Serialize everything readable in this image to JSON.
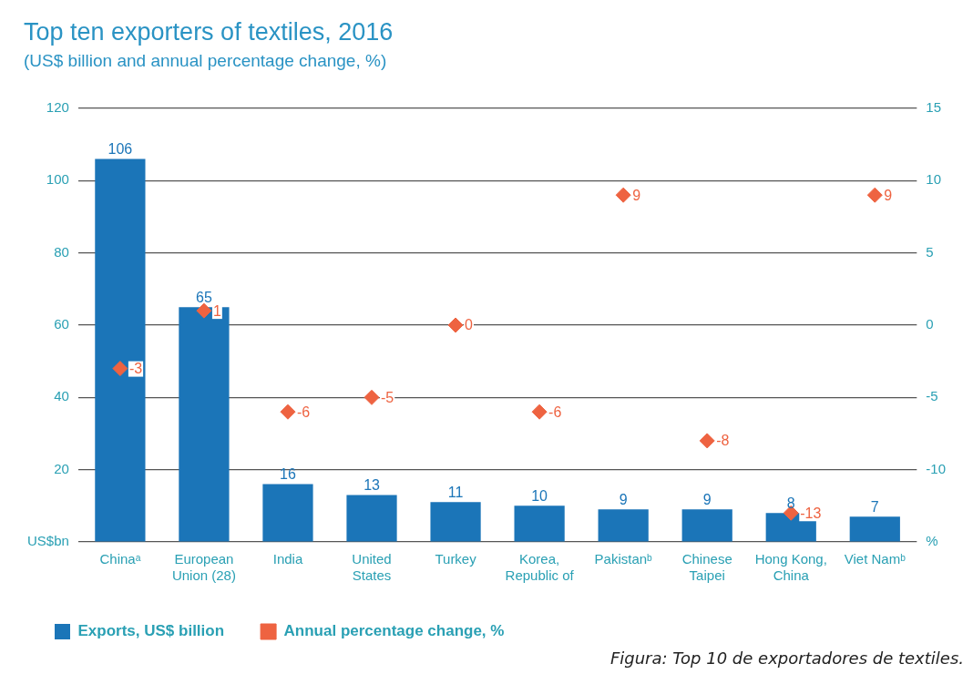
{
  "chart_data": {
    "type": "bar",
    "title": "Top ten exporters of textiles, 2016",
    "subtitle": "(US$ billion and annual percentage change, %)",
    "categories": [
      "Chinaᵃ",
      "European Union (28)",
      "India",
      "United States",
      "Turkey",
      "Korea, Republic of",
      "Pakistanᵇ",
      "Chinese Taipei",
      "Hong Kong, China",
      "Viet Namᵇ"
    ],
    "series": [
      {
        "name": "Exports, US$ billion",
        "color": "#1b75b8",
        "values": [
          106,
          65,
          16,
          13,
          11,
          10,
          9,
          9,
          8,
          7
        ]
      },
      {
        "name": "Annual percentage change, %",
        "type": "scatter",
        "axis": "y2",
        "color": "#ee6341",
        "values": [
          -3,
          1,
          -6,
          -5,
          0,
          -6,
          9,
          -8,
          -13,
          9
        ]
      }
    ],
    "ylim": [
      0,
      120
    ],
    "yticks": [
      {
        "value": 0,
        "label": "US$bn"
      },
      20,
      40,
      60,
      80,
      100,
      120
    ],
    "y2lim": [
      -15,
      15
    ],
    "y2ticks": [
      {
        "value": -15,
        "label": "%"
      },
      -10,
      -5,
      0,
      5,
      10,
      15
    ],
    "grid": "y",
    "legend": "bottom left",
    "marker": "diamond",
    "data_labels": true,
    "annotations": [
      "Figura: Top 10 de exportadores de textiles."
    ]
  }
}
